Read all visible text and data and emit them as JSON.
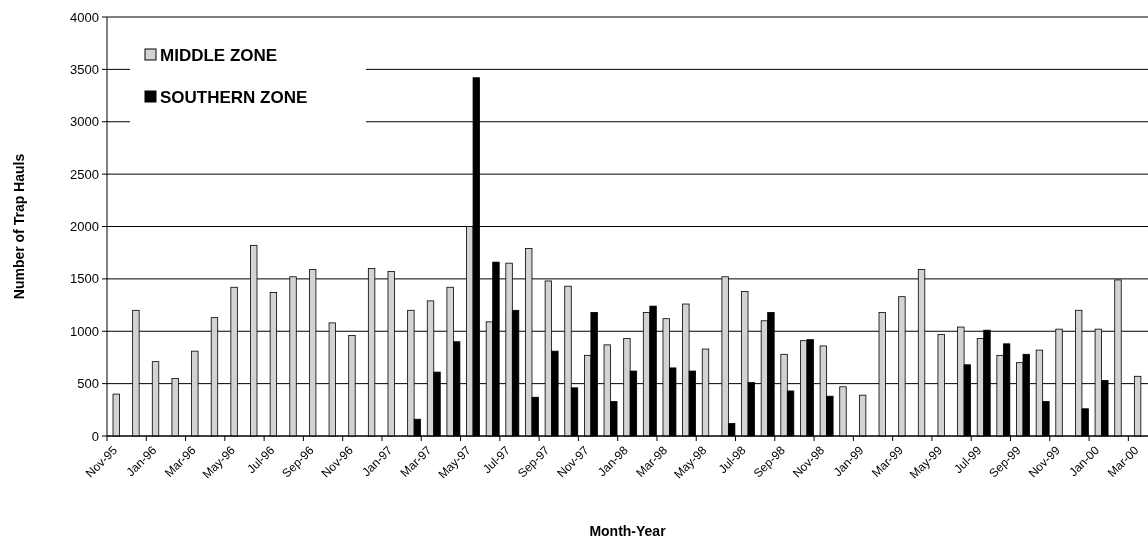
{
  "chart_data": {
    "type": "bar",
    "xlabel": "Month-Year",
    "ylabel": "Number of Trap Hauls",
    "categories": [
      "Nov-95",
      null,
      "Jan-96",
      null,
      "Mar-96",
      null,
      "May-96",
      null,
      "Jul-96",
      null,
      "Sep-96",
      null,
      "Nov-96",
      null,
      "Jan-97",
      null,
      "Mar-97",
      null,
      "May-97",
      null,
      "Jul-97",
      null,
      "Sep-97",
      null,
      "Nov-97",
      null,
      "Jan-98",
      null,
      "Mar-98",
      null,
      "May-98",
      null,
      "Jul-98",
      null,
      "Sep-98",
      null,
      "Nov-98",
      null,
      "Jan-99",
      null,
      "Mar-99",
      null,
      "May-99",
      null,
      "Jul-99",
      null,
      "Sep-99",
      null,
      "Nov-99",
      null,
      "Jan-00",
      null,
      "Mar-00"
    ],
    "series": [
      {
        "name": "MIDDLE ZONE",
        "color": "#d3d3d3",
        "values": [
          400,
          1200,
          710,
          550,
          810,
          1130,
          1420,
          1820,
          1370,
          1520,
          1590,
          1080,
          960,
          1600,
          1570,
          1200,
          1290,
          1420,
          2000,
          1090,
          1650,
          1790,
          1480,
          1430,
          770,
          870,
          930,
          1180,
          1120,
          1260,
          830,
          1520,
          1380,
          1100,
          780,
          910,
          860,
          470,
          390,
          1180,
          1330,
          1590,
          970,
          1040,
          930,
          770,
          700,
          820,
          1020,
          1200,
          1020,
          1490,
          570
        ]
      },
      {
        "name": "SOUTHERN ZONE",
        "color": "#000000",
        "values": [
          null,
          null,
          null,
          null,
          null,
          null,
          null,
          null,
          null,
          null,
          null,
          null,
          null,
          null,
          null,
          160,
          610,
          900,
          3420,
          1660,
          1200,
          370,
          810,
          460,
          1180,
          330,
          620,
          1240,
          650,
          620,
          null,
          120,
          510,
          1180,
          430,
          920,
          380,
          null,
          null,
          null,
          null,
          null,
          null,
          680,
          1010,
          880,
          780,
          330,
          null,
          260,
          530,
          null,
          null
        ]
      }
    ],
    "ylim": [
      0,
      4000
    ],
    "yticks": [
      0,
      500,
      1000,
      1500,
      2000,
      2500,
      3000,
      3500,
      4000
    ],
    "grid": "y",
    "legend": "top left"
  }
}
